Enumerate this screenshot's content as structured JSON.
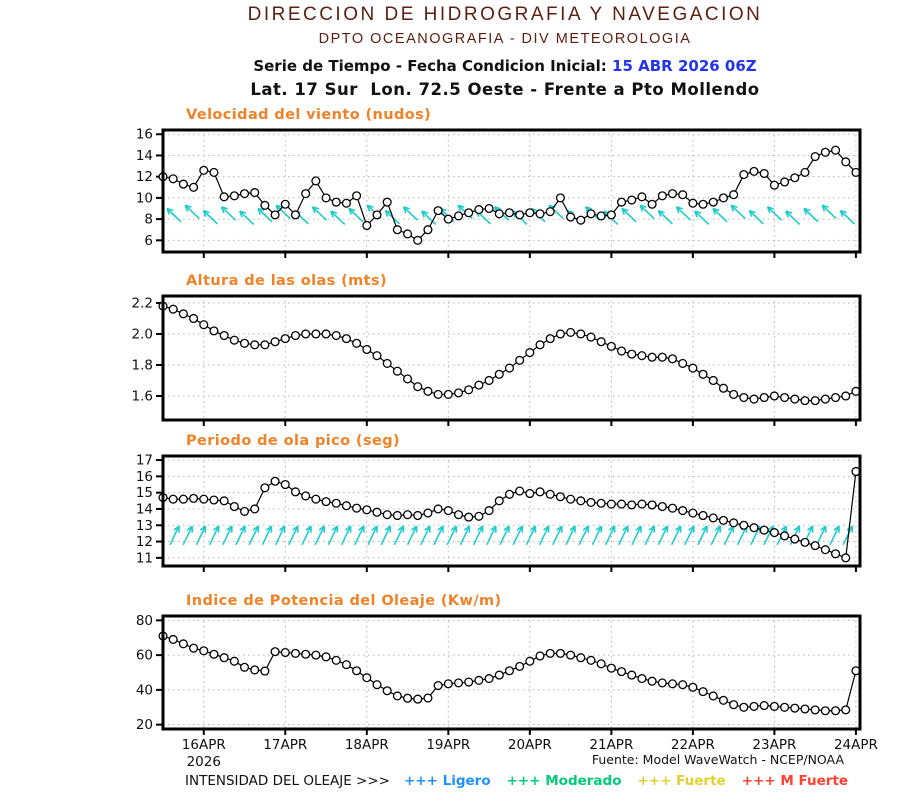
{
  "header": {
    "line1": "DIRECCION DE HIDROGRAFIA Y NAVEGACION",
    "line2": "DPTO OCEANOGRAFIA - DIV METEOROLOGIA",
    "line3_prefix": "Serie de Tiempo - Fecha Condicion Inicial: ",
    "line3_date": "15 ABR 2026 06Z",
    "line4": "Lat. 17 Sur  Lon. 72.5 Oeste - Frente a Pto Mollendo"
  },
  "x_axis": {
    "tick_labels": [
      "16APR",
      "17APR",
      "18APR",
      "19APR",
      "20APR",
      "21APR",
      "22APR",
      "23APR",
      "24APR"
    ],
    "tick_positions_days": [
      0.5,
      1.5,
      2.5,
      3.5,
      4.5,
      5.5,
      6.5,
      7.5,
      8.5
    ],
    "range_days": [
      0,
      8.55
    ],
    "year_label": "2026",
    "points_interval_hours": 3
  },
  "chart_data": [
    {
      "type": "line",
      "title": "Velocidad del viento (nudos)",
      "ylim": [
        4.9,
        16.4
      ],
      "ytick_values": [
        6,
        8,
        10,
        12,
        14,
        16
      ],
      "ytick_labels": [
        "6",
        "8",
        "10",
        "12",
        "14",
        "16"
      ],
      "grid": true,
      "marker": "circle",
      "values": [
        12.0,
        11.8,
        11.3,
        11.0,
        12.6,
        12.4,
        10.1,
        10.2,
        10.4,
        10.5,
        9.3,
        8.4,
        9.4,
        8.4,
        10.4,
        11.6,
        10.0,
        9.6,
        9.5,
        10.2,
        7.4,
        8.4,
        9.6,
        7.0,
        6.6,
        6.0,
        7.0,
        8.8,
        8.0,
        8.3,
        8.6,
        8.9,
        9.0,
        8.5,
        8.6,
        8.4,
        8.6,
        8.5,
        8.7,
        10.0,
        8.2,
        7.9,
        8.5,
        8.3,
        8.4,
        9.6,
        9.8,
        10.1,
        9.4,
        10.2,
        10.4,
        10.3,
        9.5,
        9.4,
        9.6,
        10.0,
        10.3,
        12.2,
        12.5,
        12.3,
        11.2,
        11.5,
        11.9,
        12.4,
        13.9,
        14.3,
        14.5,
        13.4,
        12.4
      ],
      "direction_arrows": {
        "meaning": "wind-direction-arrows",
        "toward": "upper-left",
        "color": "#1fcccc",
        "count": 38,
        "x_start": 167,
        "x_step": 18.2,
        "head_value": 9.0,
        "tail_value": 7.75
      }
    },
    {
      "type": "line",
      "title": "Altura de las olas (mts)",
      "ylim": [
        1.445,
        2.245
      ],
      "ytick_values": [
        1.6,
        1.8,
        2.0,
        2.2
      ],
      "ytick_labels": [
        "1.6",
        "1.8",
        "2.0",
        "2.2"
      ],
      "grid": true,
      "marker": "circle",
      "values": [
        2.18,
        2.16,
        2.13,
        2.1,
        2.06,
        2.02,
        1.99,
        1.96,
        1.94,
        1.93,
        1.93,
        1.95,
        1.97,
        1.99,
        2.0,
        2.0,
        2.0,
        1.99,
        1.97,
        1.94,
        1.9,
        1.86,
        1.81,
        1.76,
        1.71,
        1.66,
        1.63,
        1.61,
        1.61,
        1.62,
        1.64,
        1.67,
        1.7,
        1.74,
        1.78,
        1.83,
        1.88,
        1.93,
        1.97,
        2.0,
        2.01,
        2.0,
        1.98,
        1.95,
        1.92,
        1.89,
        1.87,
        1.86,
        1.85,
        1.85,
        1.84,
        1.81,
        1.78,
        1.74,
        1.7,
        1.65,
        1.61,
        1.59,
        1.58,
        1.59,
        1.6,
        1.59,
        1.58,
        1.57,
        1.57,
        1.58,
        1.59,
        1.6,
        1.63
      ]
    },
    {
      "type": "line",
      "title": "Periodo de ola pico (seg)",
      "ylim": [
        10.5,
        17.25
      ],
      "ytick_values": [
        11,
        12,
        13,
        14,
        15,
        16,
        17
      ],
      "ytick_labels": [
        "11",
        "12",
        "13",
        "14",
        "15",
        "16",
        "17"
      ],
      "grid": true,
      "marker": "circle",
      "values": [
        14.7,
        14.6,
        14.6,
        14.65,
        14.6,
        14.55,
        14.5,
        14.15,
        13.85,
        14.0,
        15.3,
        15.7,
        15.5,
        15.05,
        14.8,
        14.6,
        14.45,
        14.35,
        14.2,
        14.05,
        13.95,
        13.8,
        13.65,
        13.6,
        13.65,
        13.6,
        13.75,
        14.0,
        13.9,
        13.65,
        13.5,
        13.55,
        13.9,
        14.5,
        14.9,
        15.1,
        14.95,
        15.05,
        14.9,
        14.75,
        14.6,
        14.5,
        14.4,
        14.35,
        14.3,
        14.3,
        14.25,
        14.3,
        14.25,
        14.15,
        14.05,
        13.9,
        13.75,
        13.6,
        13.45,
        13.3,
        13.15,
        13.0,
        12.85,
        12.7,
        12.55,
        12.35,
        12.15,
        11.95,
        11.75,
        11.5,
        11.25,
        11.0,
        16.3
      ],
      "direction_arrows": {
        "meaning": "wave-direction-arrows",
        "toward": "upper-right",
        "color": "#1fcccc",
        "count": 52,
        "x_start": 170,
        "x_step": 13.2,
        "head_value": 12.95,
        "tail_value": 11.8
      }
    },
    {
      "type": "line",
      "title": "Indice de Potencia del Oleaje (Kw/m)",
      "ylim": [
        17.5,
        82.5
      ],
      "ytick_values": [
        20,
        40,
        60,
        80
      ],
      "ytick_labels": [
        "20",
        "40",
        "60",
        "80"
      ],
      "grid": true,
      "marker": "circle",
      "values": [
        71,
        69,
        66.5,
        64,
        62.5,
        60.5,
        58.5,
        56.5,
        53,
        51.5,
        50.8,
        62,
        61.5,
        61,
        60.5,
        60,
        59,
        57,
        54.5,
        51,
        47,
        43,
        39.5,
        36.5,
        35.2,
        34.7,
        35.3,
        42.5,
        43.5,
        44,
        44.5,
        45.5,
        46.5,
        48.5,
        51,
        53.5,
        56.5,
        59.5,
        61,
        61,
        60,
        58.5,
        57,
        55,
        52.5,
        50.5,
        48.5,
        46.5,
        45,
        44,
        43.5,
        43,
        41.5,
        39,
        36.5,
        34,
        31.5,
        30,
        30.5,
        31,
        30.5,
        30,
        29.5,
        29,
        28.5,
        28,
        28,
        28.5,
        51
      ]
    }
  ],
  "footer": {
    "source": "Fuente: Model WaveWatch - NCEP/NOAA",
    "legend_label": "INTENSIDAD DEL OLEAJE >>>",
    "legend": [
      {
        "symbol": "+++",
        "label": "Ligero",
        "color": "#1e90ff"
      },
      {
        "symbol": "+++",
        "label": "Moderado",
        "color": "#00cc7a"
      },
      {
        "symbol": "+++",
        "label": "Fuerte",
        "color": "#e0d030"
      },
      {
        "symbol": "+++",
        "label": "M Fuerte",
        "color": "#ff4033"
      }
    ]
  },
  "colors": {
    "header_maroon": "#5c1f10",
    "init_date_blue": "#2233ee",
    "chart_title_orange": "#f08228",
    "arrows_cyan": "#1fcccc",
    "grid_gray": "#b5b5b5",
    "series_black": "#000000",
    "marker_fill": "#ffffff"
  }
}
